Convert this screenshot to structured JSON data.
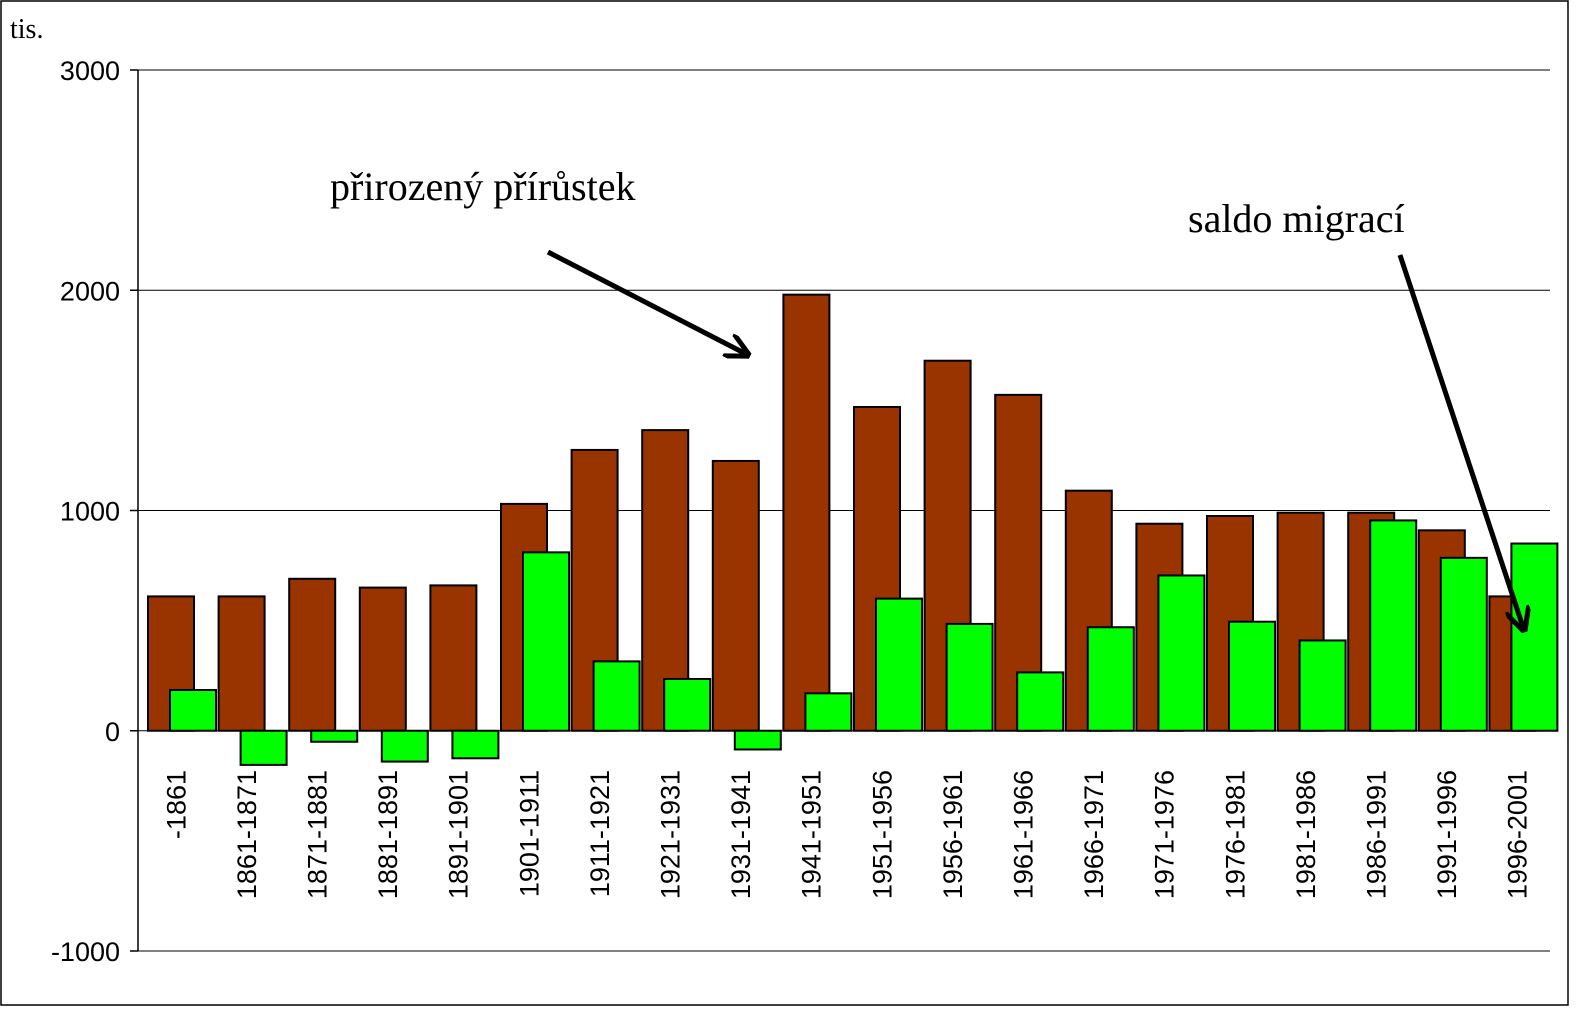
{
  "chart_data": {
    "type": "bar",
    "y_axis_label": "tis.",
    "annotations": [
      "přirozený přírůstek",
      "saldo migrací"
    ],
    "categories": [
      "-1861",
      "1861-1871",
      "1871-1881",
      "1881-1891",
      "1891-1901",
      "1901-1911",
      "1911-1921",
      "1921-1931",
      "1931-1941",
      "1941-1951",
      "1951-1956",
      "1956-1961",
      "1961-1966",
      "1966-1971",
      "1971-1976",
      "1976-1981",
      "1981-1986",
      "1986-1991",
      "1991-1996",
      "1996-2001"
    ],
    "series": [
      {
        "color": "#993300",
        "values": [
          610,
          610,
          690,
          650,
          660,
          1030,
          1275,
          1365,
          1225,
          1980,
          1470,
          1680,
          1525,
          1090,
          940,
          975,
          990,
          990,
          910,
          610
        ]
      },
      {
        "color": "#00ff00",
        "values": [
          185,
          -155,
          -50,
          -140,
          -125,
          810,
          315,
          235,
          -85,
          170,
          600,
          485,
          265,
          470,
          705,
          495,
          410,
          955,
          785,
          850
        ]
      }
    ],
    "ylim": [
      -1000,
      3000
    ],
    "yticks": [
      -1000,
      0,
      1000,
      2000,
      3000
    ],
    "grid": true
  }
}
